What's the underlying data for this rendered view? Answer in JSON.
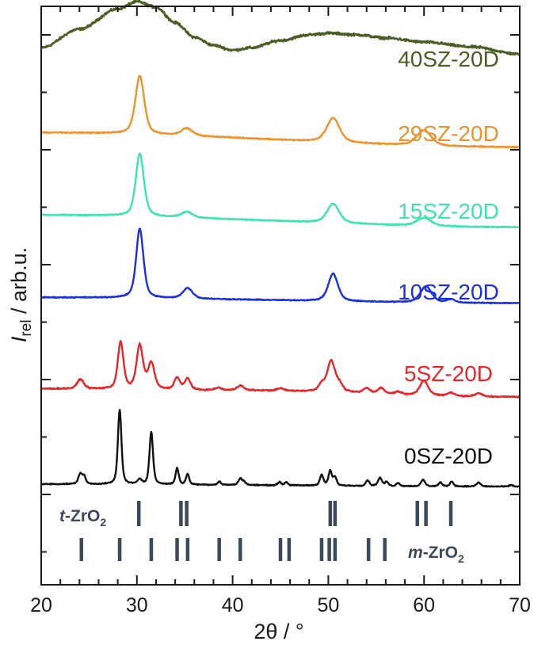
{
  "chart_data": {
    "type": "line",
    "xlabel": "2θ / °",
    "ylabel_main": "I",
    "ylabel_sub": "rel",
    "ylabel_rest": " / arb.u.",
    "xlim": [
      20,
      70
    ],
    "x_ticks": [
      20,
      30,
      40,
      50,
      60,
      70
    ],
    "y_units": "arbitrary, each pattern offset vertically",
    "series": [
      {
        "name": "40SZ-20D",
        "color": "#4a5d23",
        "offset": 5.35,
        "background": [
          [
            20,
            0.05
          ],
          [
            24,
            0.28
          ],
          [
            28,
            0.53
          ],
          [
            30,
            0.62
          ],
          [
            32,
            0.55
          ],
          [
            34,
            0.36
          ],
          [
            36,
            0.18
          ],
          [
            38,
            0.08
          ],
          [
            40,
            0.02
          ],
          [
            42,
            0.05
          ],
          [
            45,
            0.14
          ],
          [
            48,
            0.21
          ],
          [
            50,
            0.23
          ],
          [
            53,
            0.21
          ],
          [
            56,
            0.17
          ],
          [
            60,
            0.12
          ],
          [
            65,
            0.06
          ],
          [
            70,
            -0.03
          ]
        ],
        "peaks": [],
        "noise": 0.022
      },
      {
        "name": "29SZ-20D",
        "color": "#f0922b",
        "offset": 4.35,
        "background": [
          [
            20,
            0.0
          ],
          [
            70,
            -0.18
          ]
        ],
        "peaks": [
          [
            30.3,
            0.72,
            0.55
          ],
          [
            35.2,
            0.09,
            0.7
          ],
          [
            50.5,
            0.3,
            0.8
          ],
          [
            60.0,
            0.19,
            0.9
          ]
        ],
        "noise": 0.01
      },
      {
        "name": "15SZ-20D",
        "color": "#3ee3b5",
        "offset": 3.33,
        "background": [
          [
            20,
            0.0
          ],
          [
            70,
            -0.15
          ]
        ],
        "peaks": [
          [
            30.3,
            0.78,
            0.5
          ],
          [
            35.2,
            0.07,
            0.7
          ],
          [
            50.5,
            0.24,
            0.75
          ],
          [
            60.0,
            0.1,
            0.9
          ]
        ],
        "noise": 0.01
      },
      {
        "name": "10SZ-20D",
        "color": "#1a2fe0",
        "offset": 2.31,
        "background": [
          [
            20,
            0.0
          ],
          [
            70,
            -0.07
          ]
        ],
        "peaks": [
          [
            30.3,
            0.86,
            0.45
          ],
          [
            35.3,
            0.13,
            0.6
          ],
          [
            50.5,
            0.34,
            0.6
          ],
          [
            60.2,
            0.2,
            0.7
          ],
          [
            62.8,
            0.04,
            0.5
          ]
        ],
        "noise": 0.009
      },
      {
        "name": "5SZ-20D",
        "color": "#e8262a",
        "offset": 1.18,
        "background": [
          [
            20,
            0.0
          ],
          [
            40,
            -0.02
          ],
          [
            70,
            -0.1
          ]
        ],
        "peaks": [
          [
            24.1,
            0.12,
            0.4
          ],
          [
            28.3,
            0.58,
            0.35
          ],
          [
            30.3,
            0.54,
            0.4
          ],
          [
            31.5,
            0.32,
            0.4
          ],
          [
            34.2,
            0.15,
            0.35
          ],
          [
            35.3,
            0.14,
            0.35
          ],
          [
            38.5,
            0.03,
            0.4
          ],
          [
            40.8,
            0.06,
            0.4
          ],
          [
            45.0,
            0.03,
            0.4
          ],
          [
            49.3,
            0.08,
            0.4
          ],
          [
            50.3,
            0.38,
            0.5
          ],
          [
            51.2,
            0.08,
            0.4
          ],
          [
            54.0,
            0.06,
            0.4
          ],
          [
            55.5,
            0.07,
            0.4
          ],
          [
            57.3,
            0.03,
            0.4
          ],
          [
            60.0,
            0.18,
            0.5
          ],
          [
            62.8,
            0.04,
            0.4
          ],
          [
            65.7,
            0.04,
            0.4
          ]
        ],
        "noise": 0.012
      },
      {
        "name": "0SZ-20D",
        "color": "#111111",
        "offset": 0.0,
        "background": [
          [
            20,
            0.0
          ],
          [
            70,
            -0.03
          ]
        ],
        "peaks": [
          [
            24.1,
            0.13,
            0.25
          ],
          [
            24.5,
            0.08,
            0.2
          ],
          [
            28.2,
            0.92,
            0.22
          ],
          [
            30.3,
            0.06,
            0.25
          ],
          [
            31.5,
            0.65,
            0.22
          ],
          [
            34.2,
            0.2,
            0.2
          ],
          [
            35.3,
            0.13,
            0.2
          ],
          [
            38.6,
            0.04,
            0.2
          ],
          [
            40.8,
            0.08,
            0.22
          ],
          [
            41.2,
            0.04,
            0.2
          ],
          [
            44.9,
            0.04,
            0.2
          ],
          [
            45.6,
            0.04,
            0.2
          ],
          [
            49.3,
            0.13,
            0.22
          ],
          [
            50.2,
            0.18,
            0.22
          ],
          [
            50.7,
            0.1,
            0.2
          ],
          [
            54.1,
            0.07,
            0.22
          ],
          [
            55.4,
            0.1,
            0.25
          ],
          [
            56.1,
            0.05,
            0.2
          ],
          [
            57.3,
            0.04,
            0.2
          ],
          [
            59.9,
            0.08,
            0.25
          ],
          [
            61.7,
            0.05,
            0.2
          ],
          [
            62.9,
            0.06,
            0.22
          ],
          [
            65.7,
            0.05,
            0.25
          ],
          [
            69.1,
            0.02,
            0.2
          ]
        ],
        "noise": 0.009
      }
    ],
    "reference_patterns": [
      {
        "name_prefix": "t",
        "name_main": "-ZrO",
        "name_sub": "2",
        "color": "#3b4a5a",
        "positions": [
          30.2,
          34.6,
          35.2,
          50.2,
          50.7,
          59.3,
          60.2,
          62.8
        ]
      },
      {
        "name_prefix": "m",
        "name_main": "-ZrO",
        "name_sub": "2",
        "color": "#3b4a5a",
        "positions": [
          24.2,
          28.2,
          31.5,
          34.2,
          35.3,
          38.6,
          40.8,
          45.0,
          45.9,
          49.3,
          50.1,
          50.7,
          54.2,
          55.9
        ]
      }
    ]
  }
}
